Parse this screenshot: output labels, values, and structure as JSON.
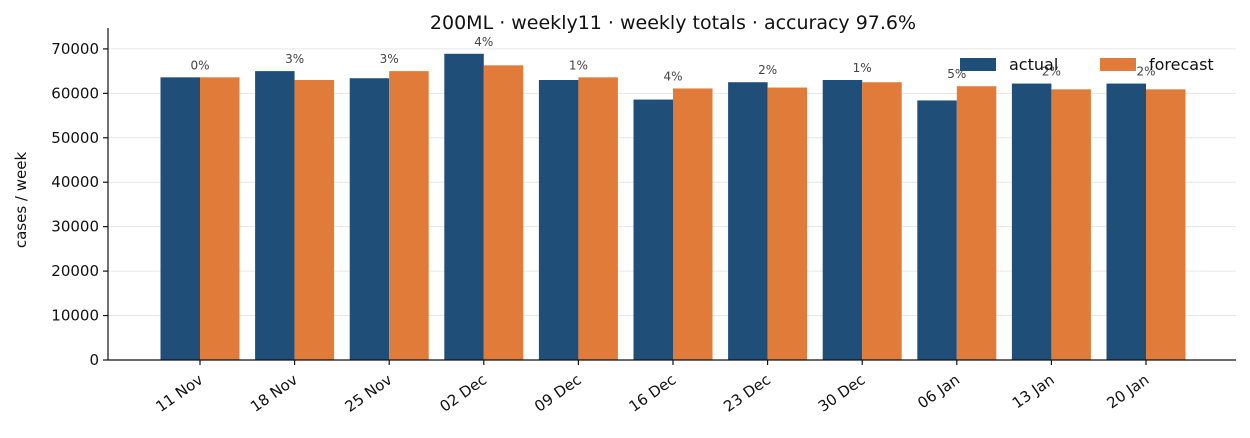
{
  "chart_data": {
    "type": "bar",
    "title": "200ML · weekly11 · weekly totals · accuracy 97.6%",
    "xlabel": "",
    "ylabel": "cases / week",
    "ylim": [
      0,
      72000
    ],
    "yticks": [
      0,
      10000,
      20000,
      30000,
      40000,
      50000,
      60000,
      70000
    ],
    "grid": true,
    "legend_position": "top-right",
    "categories": [
      "11 Nov",
      "18 Nov",
      "25 Nov",
      "02 Dec",
      "09 Dec",
      "16 Dec",
      "23 Dec",
      "30 Dec",
      "06 Jan",
      "13 Jan",
      "20 Jan"
    ],
    "series": [
      {
        "name": "actual",
        "color": "#1f4e79",
        "values": [
          63600,
          65000,
          63400,
          68900,
          63000,
          58600,
          62500,
          63000,
          58400,
          62200,
          62200
        ]
      },
      {
        "name": "forecast",
        "color": "#e07b39",
        "values": [
          63600,
          63000,
          65000,
          66300,
          63600,
          61100,
          61300,
          62500,
          61600,
          60900,
          60900
        ]
      }
    ],
    "data_labels": [
      "0%",
      "3%",
      "3%",
      "4%",
      "1%",
      "4%",
      "2%",
      "1%",
      "5%",
      "2%",
      "2%"
    ]
  }
}
